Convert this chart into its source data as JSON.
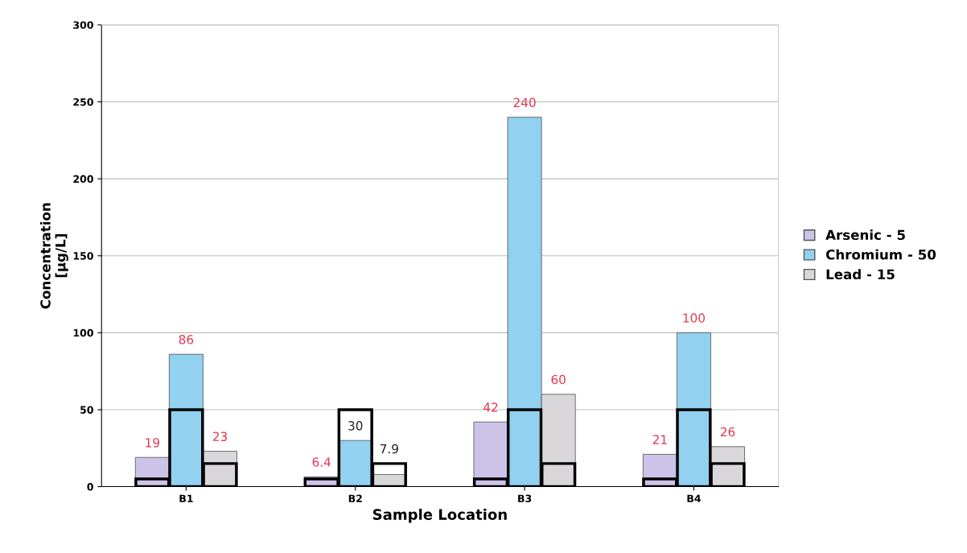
{
  "chart_data": {
    "type": "bar",
    "xlabel": "Sample Location",
    "ylabel": "Concentration\n[µg/L]",
    "categories": [
      "B1",
      "B2",
      "B3",
      "B4"
    ],
    "series": [
      {
        "name": "Arsenic - 5",
        "color": "#cdc3e8",
        "values": [
          19,
          6.4,
          42,
          21
        ],
        "value_labels": [
          "19",
          "6.4",
          "42",
          "21"
        ]
      },
      {
        "name": "Chromium - 50",
        "color": "#92d1f0",
        "values": [
          86,
          30,
          240,
          100
        ],
        "value_labels": [
          "86",
          "30",
          "240",
          "100"
        ]
      },
      {
        "name": "Lead - 15",
        "color": "#dad7da",
        "values": [
          23,
          7.9,
          60,
          26
        ],
        "value_labels": [
          "23",
          "7.9",
          "60",
          "26"
        ]
      },
      {
        "type": "bar",
        "color": "#000000",
        "values": [
          5,
          5,
          5,
          5
        ]
      },
      {
        "type": "bar",
        "color": "#000000",
        "values": [
          50,
          50,
          50,
          50
        ]
      },
      {
        "type": "bar",
        "color": "#000000",
        "values": [
          15,
          15,
          15,
          15
        ]
      }
    ],
    "ylim": [
      0,
      300
    ],
    "yticks": [
      0,
      50,
      100,
      150,
      200,
      250,
      300
    ],
    "grid": "y",
    "legend": "right"
  }
}
